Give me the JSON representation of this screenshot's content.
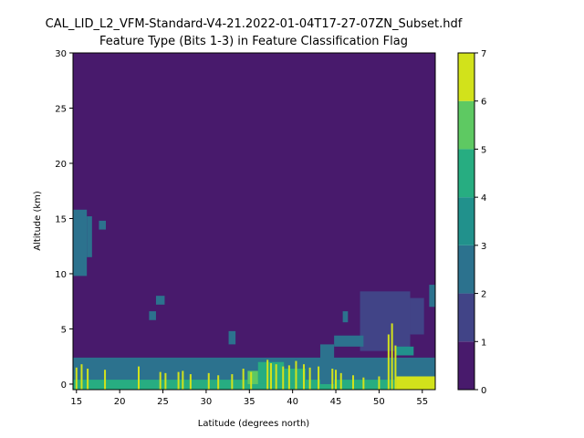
{
  "chart_data": {
    "type": "heatmap",
    "title_line1": "CAL_LID_L2_VFM-Standard-V4-21.2022-01-04T17-27-07ZN_Subset.hdf",
    "title_line2": "Feature Type (Bits 1-3) in Feature Classification Flag",
    "xlabel": "Latitude (degrees north)",
    "ylabel": "Altitude (km)",
    "xlim": [
      14.6,
      56.5
    ],
    "ylim": [
      -0.5,
      30
    ],
    "xticks": [
      15,
      20,
      25,
      30,
      35,
      40,
      45,
      50,
      55
    ],
    "yticks": [
      0,
      5,
      10,
      15,
      20,
      25,
      30
    ],
    "colorbar": {
      "ticks": [
        0,
        1,
        2,
        3,
        4,
        5,
        6,
        7
      ],
      "levels": [
        {
          "from": 0,
          "to": 1,
          "color": "#481a6c"
        },
        {
          "from": 1,
          "to": 2,
          "color": "#414487"
        },
        {
          "from": 2,
          "to": 3,
          "color": "#2c728e"
        },
        {
          "from": 3,
          "to": 4,
          "color": "#21918c"
        },
        {
          "from": 4,
          "to": 5,
          "color": "#27ad81"
        },
        {
          "from": 5,
          "to": 6,
          "color": "#5ec962"
        },
        {
          "from": 6,
          "to": 7,
          "color": "#d2e21b"
        }
      ]
    },
    "background_value": 0,
    "regions": [
      {
        "x": [
          14.6,
          56.5
        ],
        "y": [
          0.0,
          2.4
        ],
        "v": 2
      },
      {
        "x": [
          14.6,
          56.5
        ],
        "y": [
          -0.5,
          0.4
        ],
        "v": 4
      },
      {
        "x": [
          14.6,
          16.2
        ],
        "y": [
          9.8,
          15.8
        ],
        "v": 2
      },
      {
        "x": [
          16.2,
          16.8
        ],
        "y": [
          11.5,
          15.2
        ],
        "v": 2
      },
      {
        "x": [
          17.6,
          18.4
        ],
        "y": [
          14.0,
          14.8
        ],
        "v": 2
      },
      {
        "x": [
          23.4,
          24.2
        ],
        "y": [
          5.8,
          6.6
        ],
        "v": 2
      },
      {
        "x": [
          24.2,
          25.2
        ],
        "y": [
          7.2,
          8.0
        ],
        "v": 2
      },
      {
        "x": [
          32.6,
          33.4
        ],
        "y": [
          3.6,
          4.8
        ],
        "v": 2
      },
      {
        "x": [
          45.8,
          46.4
        ],
        "y": [
          5.6,
          6.6
        ],
        "v": 2
      },
      {
        "x": [
          47.8,
          53.6
        ],
        "y": [
          3.0,
          8.4
        ],
        "v": 1
      },
      {
        "x": [
          53.6,
          55.2
        ],
        "y": [
          4.5,
          7.8
        ],
        "v": 1
      },
      {
        "x": [
          55.8,
          56.5
        ],
        "y": [
          7.0,
          9.0
        ],
        "v": 2
      },
      {
        "x": [
          44.8,
          48.2
        ],
        "y": [
          3.4,
          4.4
        ],
        "v": 2
      },
      {
        "x": [
          51.8,
          54.0
        ],
        "y": [
          2.6,
          3.4
        ],
        "v": 3
      },
      {
        "x": [
          52.0,
          54.5
        ],
        "y": [
          0.2,
          1.6
        ],
        "v": 2
      },
      {
        "x": [
          43.2,
          44.8
        ],
        "y": [
          0.0,
          3.6
        ],
        "v": 2
      },
      {
        "x": [
          36.0,
          39.0
        ],
        "y": [
          0.0,
          2.0
        ],
        "v": 4
      },
      {
        "x": [
          39.0,
          41.5
        ],
        "y": [
          0.0,
          1.4
        ],
        "v": 4
      },
      {
        "x": [
          34.8,
          36.0
        ],
        "y": [
          0.0,
          1.2
        ],
        "v": 5
      },
      {
        "x": [
          52.0,
          56.5
        ],
        "y": [
          -0.5,
          0.7
        ],
        "v": 6
      }
    ],
    "spikes": [
      {
        "x": 15.0,
        "top": 1.5
      },
      {
        "x": 15.6,
        "top": 1.8
      },
      {
        "x": 16.3,
        "top": 1.4
      },
      {
        "x": 18.3,
        "top": 1.3
      },
      {
        "x": 22.2,
        "top": 1.6
      },
      {
        "x": 24.7,
        "top": 1.1
      },
      {
        "x": 25.3,
        "top": 1.0
      },
      {
        "x": 26.8,
        "top": 1.1
      },
      {
        "x": 27.3,
        "top": 1.2
      },
      {
        "x": 28.2,
        "top": 0.9
      },
      {
        "x": 30.3,
        "top": 1.0
      },
      {
        "x": 31.4,
        "top": 0.8
      },
      {
        "x": 33.0,
        "top": 0.9
      },
      {
        "x": 34.3,
        "top": 1.4
      },
      {
        "x": 35.2,
        "top": 1.1
      },
      {
        "x": 37.1,
        "top": 2.2
      },
      {
        "x": 37.5,
        "top": 1.9
      },
      {
        "x": 38.1,
        "top": 1.8
      },
      {
        "x": 38.9,
        "top": 1.6
      },
      {
        "x": 39.6,
        "top": 1.7
      },
      {
        "x": 40.4,
        "top": 2.1
      },
      {
        "x": 41.3,
        "top": 1.8
      },
      {
        "x": 42.0,
        "top": 1.5
      },
      {
        "x": 43.0,
        "top": 1.6
      },
      {
        "x": 44.6,
        "top": 1.4
      },
      {
        "x": 45.0,
        "top": 1.3
      },
      {
        "x": 45.6,
        "top": 1.0
      },
      {
        "x": 47.0,
        "top": 0.8
      },
      {
        "x": 48.2,
        "top": 0.6
      },
      {
        "x": 50.0,
        "top": 0.7
      },
      {
        "x": 51.1,
        "top": 4.5
      },
      {
        "x": 51.5,
        "top": 5.5
      },
      {
        "x": 51.9,
        "top": 3.5
      }
    ]
  }
}
